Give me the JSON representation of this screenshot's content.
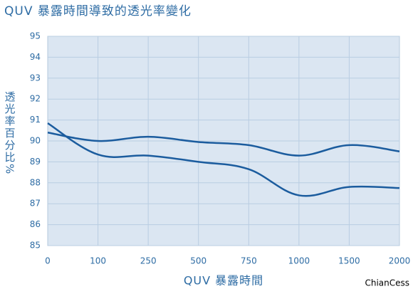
{
  "chart_data": {
    "type": "line",
    "title": "QUV 暴露時間導致的透光率變化",
    "x_label": "QUV 暴露時間",
    "y_label": "透光率百分比%",
    "categories": [
      "0",
      "100",
      "250",
      "500",
      "750",
      "1000",
      "1500",
      "2000"
    ],
    "series": [
      {
        "color": "#1b5c9e",
        "values": [
          90.4,
          90.0,
          90.2,
          89.95,
          89.8,
          89.3,
          89.8,
          89.5
        ]
      },
      {
        "color": "#1b5c9e",
        "values": [
          90.85,
          89.35,
          89.3,
          89.0,
          88.65,
          87.4,
          87.8,
          87.75
        ]
      }
    ],
    "ylim": [
      85,
      95
    ],
    "yticks": [
      85,
      86,
      87,
      88,
      89,
      90,
      91,
      92,
      93,
      94,
      95
    ],
    "grid": true,
    "watermark": "ChianCess"
  }
}
